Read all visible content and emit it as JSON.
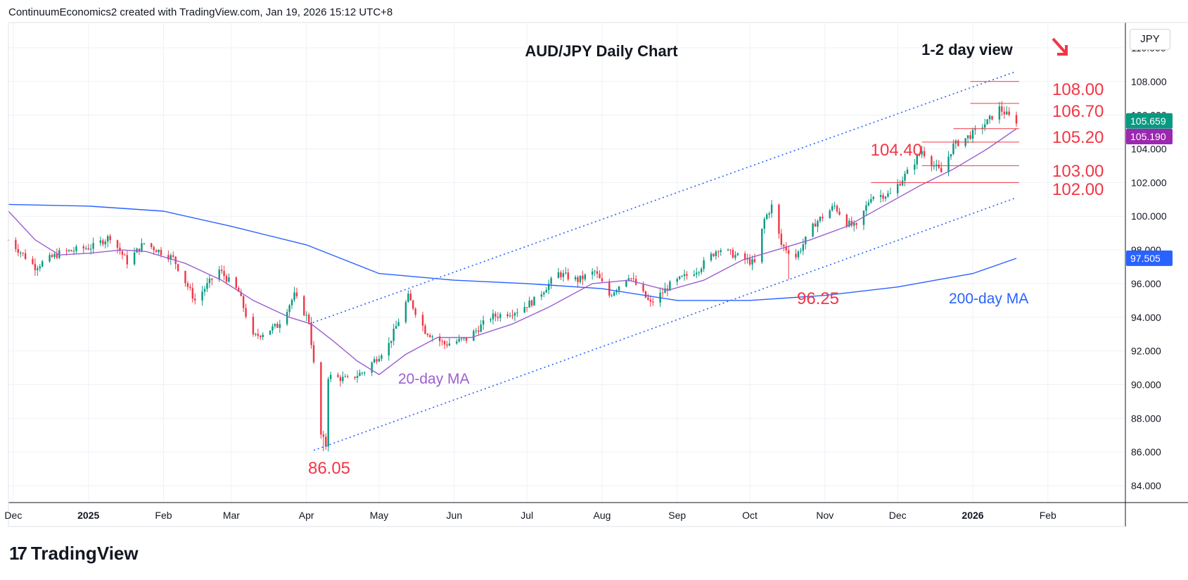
{
  "header": {
    "attribution": "ContinuumEconomics2 created with TradingView.com, Jan 19, 2026 15:12 UTC+8"
  },
  "currency_selector": {
    "label": "JPY"
  },
  "footer": {
    "brand": "TradingView",
    "logo_icon": "tradingview-logo-icon"
  },
  "chart_data": {
    "type": "candlestick",
    "title": "AUD/JPY Daily Chart",
    "view_label": "1-2 day view",
    "view_icon": "arrow-down-right-icon",
    "y_axis": {
      "ticks": [
        "110.000",
        "108.000",
        "106.000",
        "104.000",
        "102.000",
        "100.000",
        "98.000",
        "96.000",
        "94.000",
        "92.000",
        "90.000",
        "88.000",
        "86.000",
        "84.000"
      ],
      "range": [
        83,
        111.5
      ]
    },
    "x_axis": {
      "ticks": [
        {
          "label": "Dec",
          "date": "2024-12-01"
        },
        {
          "label": "2025",
          "date": "2025-01-01",
          "bold": true
        },
        {
          "label": "Feb",
          "date": "2025-02-01"
        },
        {
          "label": "Mar",
          "date": "2025-03-01"
        },
        {
          "label": "Apr",
          "date": "2025-04-01"
        },
        {
          "label": "May",
          "date": "2025-05-01"
        },
        {
          "label": "Jun",
          "date": "2025-06-01"
        },
        {
          "label": "Jul",
          "date": "2025-07-01"
        },
        {
          "label": "Aug",
          "date": "2025-08-01"
        },
        {
          "label": "Sep",
          "date": "2025-09-01"
        },
        {
          "label": "Oct",
          "date": "2025-10-01"
        },
        {
          "label": "Nov",
          "date": "2025-11-01"
        },
        {
          "label": "Dec",
          "date": "2025-12-01"
        },
        {
          "label": "2026",
          "date": "2026-01-01",
          "bold": true
        },
        {
          "label": "Feb",
          "date": "2026-02-01"
        }
      ],
      "range": [
        "2024-11-29",
        "2026-03-05"
      ]
    },
    "price_path": [
      [
        "2024-11-29",
        98.6
      ],
      [
        "2024-12-10",
        97.0
      ],
      [
        "2024-12-20",
        97.8
      ],
      [
        "2025-01-03",
        98.2
      ],
      [
        "2025-01-10",
        98.8
      ],
      [
        "2025-01-17",
        97.3
      ],
      [
        "2025-01-24",
        98.4
      ],
      [
        "2025-02-05",
        97.5
      ],
      [
        "2025-02-14",
        95.0
      ],
      [
        "2025-02-24",
        96.8
      ],
      [
        "2025-03-04",
        95.5
      ],
      [
        "2025-03-10",
        92.8
      ],
      [
        "2025-03-20",
        93.5
      ],
      [
        "2025-03-27",
        95.3
      ],
      [
        "2025-04-02",
        93.8
      ],
      [
        "2025-04-04",
        91.2
      ],
      [
        "2025-04-07",
        87.0
      ],
      [
        "2025-04-09",
        86.4
      ],
      [
        "2025-04-10",
        90.5
      ],
      [
        "2025-04-18",
        90.3
      ],
      [
        "2025-04-25",
        90.8
      ],
      [
        "2025-05-05",
        92.4
      ],
      [
        "2025-05-13",
        95.2
      ],
      [
        "2025-05-20",
        93.2
      ],
      [
        "2025-05-28",
        92.4
      ],
      [
        "2025-06-06",
        92.7
      ],
      [
        "2025-06-16",
        94.0
      ],
      [
        "2025-06-27",
        94.4
      ],
      [
        "2025-07-04",
        95.0
      ],
      [
        "2025-07-14",
        96.6
      ],
      [
        "2025-07-22",
        96.2
      ],
      [
        "2025-07-29",
        96.7
      ],
      [
        "2025-08-04",
        95.3
      ],
      [
        "2025-08-12",
        96.5
      ],
      [
        "2025-08-21",
        94.8
      ],
      [
        "2025-08-29",
        95.9
      ],
      [
        "2025-09-10",
        96.9
      ],
      [
        "2025-09-18",
        98.1
      ],
      [
        "2025-09-26",
        97.6
      ],
      [
        "2025-10-03",
        97.2
      ],
      [
        "2025-10-07",
        99.8
      ],
      [
        "2025-10-10",
        100.6
      ],
      [
        "2025-10-14",
        98.3
      ],
      [
        "2025-10-20",
        97.6
      ],
      [
        "2025-10-28",
        99.6
      ],
      [
        "2025-11-05",
        100.6
      ],
      [
        "2025-11-10",
        99.6
      ],
      [
        "2025-11-14",
        99.3
      ],
      [
        "2025-11-20",
        101.2
      ],
      [
        "2025-11-28",
        101.3
      ],
      [
        "2025-12-05",
        102.6
      ],
      [
        "2025-12-11",
        103.9
      ],
      [
        "2025-12-16",
        103.0
      ],
      [
        "2025-12-19",
        102.6
      ],
      [
        "2025-12-24",
        104.2
      ],
      [
        "2025-12-31",
        104.8
      ],
      [
        "2026-01-07",
        105.6
      ],
      [
        "2026-01-12",
        106.4
      ],
      [
        "2026-01-16",
        105.9
      ],
      [
        "2026-01-19",
        105.66
      ]
    ],
    "lows": [
      {
        "date": "2025-04-08",
        "value": 86.05
      },
      {
        "date": "2025-10-17",
        "value": 96.25
      }
    ],
    "series": [
      {
        "name": "20-day MA",
        "color": "#9c5fcf",
        "points": [
          [
            "2024-11-29",
            100.3
          ],
          [
            "2024-12-10",
            98.6
          ],
          [
            "2024-12-20",
            97.7
          ],
          [
            "2025-01-01",
            97.8
          ],
          [
            "2025-01-15",
            98.0
          ],
          [
            "2025-01-25",
            97.9
          ],
          [
            "2025-02-10",
            97.2
          ],
          [
            "2025-02-25",
            96.2
          ],
          [
            "2025-03-10",
            95.0
          ],
          [
            "2025-03-25",
            94.0
          ],
          [
            "2025-04-03",
            93.6
          ],
          [
            "2025-04-12",
            92.6
          ],
          [
            "2025-04-22",
            91.4
          ],
          [
            "2025-05-01",
            90.6
          ],
          [
            "2025-05-12",
            91.8
          ],
          [
            "2025-05-25",
            92.8
          ],
          [
            "2025-06-08",
            92.8
          ],
          [
            "2025-06-25",
            93.6
          ],
          [
            "2025-07-10",
            94.6
          ],
          [
            "2025-07-28",
            96.0
          ],
          [
            "2025-08-12",
            96.2
          ],
          [
            "2025-08-28",
            95.6
          ],
          [
            "2025-09-12",
            96.2
          ],
          [
            "2025-09-28",
            97.4
          ],
          [
            "2025-10-12",
            98.0
          ],
          [
            "2025-10-26",
            98.6
          ],
          [
            "2025-11-10",
            99.4
          ],
          [
            "2025-11-25",
            100.6
          ],
          [
            "2025-12-10",
            101.8
          ],
          [
            "2025-12-24",
            102.8
          ],
          [
            "2026-01-07",
            104.0
          ],
          [
            "2026-01-19",
            105.19
          ]
        ]
      },
      {
        "name": "200-day MA",
        "color": "#2962ff",
        "points": [
          [
            "2024-11-29",
            100.7
          ],
          [
            "2025-01-01",
            100.6
          ],
          [
            "2025-02-01",
            100.3
          ],
          [
            "2025-03-01",
            99.4
          ],
          [
            "2025-04-01",
            98.3
          ],
          [
            "2025-05-01",
            96.6
          ],
          [
            "2025-06-01",
            96.2
          ],
          [
            "2025-07-01",
            96.0
          ],
          [
            "2025-08-01",
            95.7
          ],
          [
            "2025-09-01",
            95.0
          ],
          [
            "2025-10-01",
            95.0
          ],
          [
            "2025-11-01",
            95.3
          ],
          [
            "2025-12-01",
            95.8
          ],
          [
            "2026-01-01",
            96.6
          ],
          [
            "2026-01-19",
            97.5
          ]
        ]
      }
    ],
    "price_labels": [
      {
        "text": "105.659",
        "color": "#089981",
        "value": 105.66
      },
      {
        "text": "105.190",
        "color": "#9c27b0",
        "value": 105.19
      },
      {
        "text": "97.505",
        "color": "#2962ff",
        "value": 97.505
      }
    ],
    "channel": [
      {
        "from": [
          "2025-04-02",
          93.6
        ],
        "to": [
          "2026-01-19",
          108.6
        ]
      },
      {
        "from": [
          "2025-04-04",
          86.1
        ],
        "to": [
          "2026-01-19",
          101.1
        ]
      }
    ],
    "levels": [
      {
        "label": "108.00",
        "value": 108.0,
        "from": "2025-12-31"
      },
      {
        "label": "106.70",
        "value": 106.7,
        "from": "2025-12-31"
      },
      {
        "label": "105.20",
        "value": 105.2,
        "from": "2025-12-24"
      },
      {
        "label": "104.40",
        "value": 104.4,
        "from": "2025-12-11"
      },
      {
        "label": "103.00",
        "value": 103.0,
        "from": "2025-12-11"
      },
      {
        "label": "102.00",
        "value": 102.0,
        "from": "2025-11-20"
      }
    ],
    "annotations": [
      {
        "text": "86.05",
        "color": "#f23645"
      },
      {
        "text": "96.25",
        "color": "#f23645"
      },
      {
        "text": "20-day MA",
        "color": "#9c5fcf"
      },
      {
        "text": "200-day MA",
        "color": "#2962ff"
      }
    ],
    "colors": {
      "up": "#089981",
      "down": "#f23645",
      "grid": "#eef1f6",
      "channel": "#2962ff",
      "level": "#f23645"
    }
  }
}
